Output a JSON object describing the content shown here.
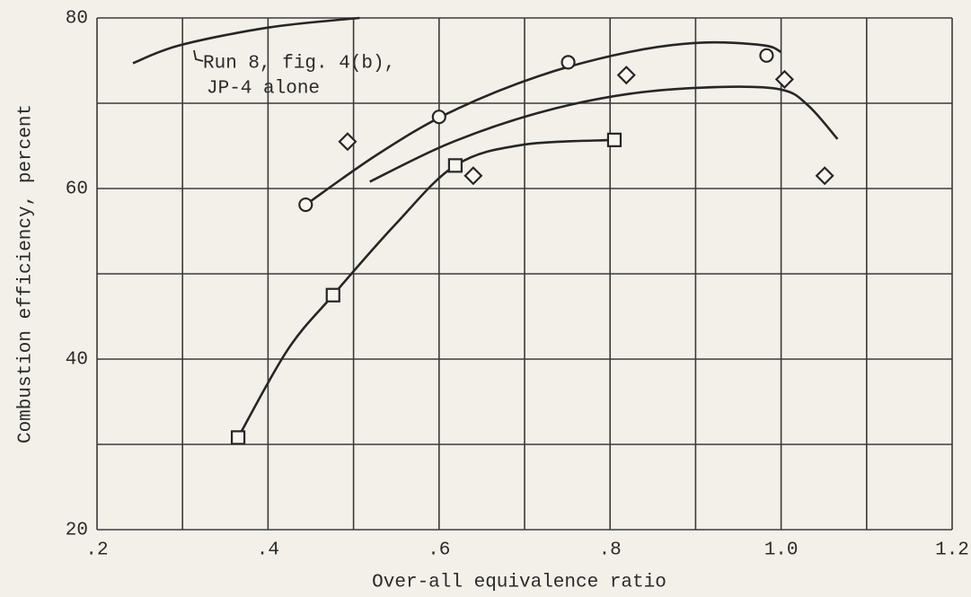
{
  "chart_data": {
    "type": "scatter",
    "x_label": "Over-all equivalence ratio",
    "y_label": "Combustion efficiency, percent",
    "xlim": [
      0.2,
      1.2
    ],
    "ylim": [
      20,
      80
    ],
    "xticks": [
      {
        "value": 0.2,
        "label": ".2"
      },
      {
        "value": 0.4,
        "label": ".4"
      },
      {
        "value": 0.6,
        "label": ".6"
      },
      {
        "value": 0.8,
        "label": ".8"
      },
      {
        "value": 1.0,
        "label": "1.0"
      },
      {
        "value": 1.2,
        "label": "1.2"
      }
    ],
    "yticks": [
      20,
      40,
      60,
      80
    ],
    "xgrid": [
      0.3,
      0.5,
      0.7,
      0.9,
      1.1
    ],
    "ygrid": [
      30,
      50,
      70
    ],
    "color": "#262626",
    "series": [
      {
        "marker": "circle",
        "x": [
          0.444,
          0.6,
          0.751,
          0.983
        ],
        "values": [
          58.1,
          68.4,
          74.8,
          75.6
        ]
      },
      {
        "marker": "diamond",
        "x": [
          0.493,
          0.64,
          0.819,
          1.004,
          1.051
        ],
        "values": [
          65.5,
          61.5,
          73.3,
          72.8,
          61.5
        ]
      },
      {
        "marker": "square",
        "x": [
          0.365,
          0.476,
          0.619,
          0.805
        ],
        "values": [
          30.8,
          47.5,
          62.7,
          65.7
        ]
      }
    ],
    "curves": [
      {
        "x": [
          0.444,
          0.528,
          0.612,
          0.717,
          0.822,
          0.906,
          0.979,
          1.0
        ],
        "values": [
          58.1,
          64.0,
          68.9,
          73.2,
          76.0,
          77.1,
          76.8,
          76.0
        ]
      },
      {
        "x": [
          0.519,
          0.612,
          0.717,
          0.822,
          0.927,
          1.0,
          1.032,
          1.066
        ],
        "values": [
          60.8,
          65.3,
          68.9,
          71.1,
          71.9,
          71.6,
          69.7,
          65.8
        ]
      },
      {
        "x": [
          0.365,
          0.423,
          0.476,
          0.549,
          0.619,
          0.696,
          0.805
        ],
        "values": [
          30.8,
          41.1,
          47.5,
          55.8,
          62.7,
          65.1,
          65.7
        ]
      },
      {
        "x": [
          0.242,
          0.297,
          0.402,
          0.507
        ],
        "values": [
          74.7,
          76.8,
          78.9,
          80
        ]
      }
    ],
    "annotation": [
      "Run 8, fig. 4(b),",
      "JP-4 alone"
    ]
  }
}
